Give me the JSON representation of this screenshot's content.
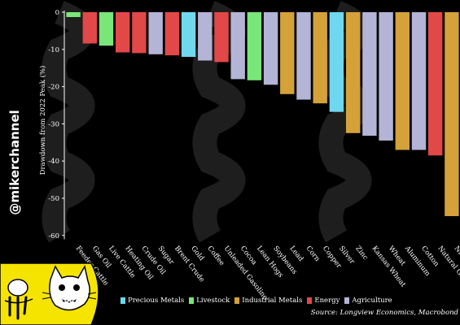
{
  "watermark": "@mikerchannel",
  "legend": [
    {
      "label": "Precious Metals",
      "color": "#6fd8ee"
    },
    {
      "label": "Livestock",
      "color": "#79e679"
    },
    {
      "label": "Industrial Metals",
      "color": "#d4a238"
    },
    {
      "label": "Energy",
      "color": "#e24848"
    },
    {
      "label": "Agriculture",
      "color": "#b4b4d6"
    }
  ],
  "source": "Source: Longview Economics, Macrobond",
  "chart_data": {
    "type": "bar",
    "ylabel": "Drawdown from 2022 Peak (%)",
    "ylim": [
      -61,
      0
    ],
    "yticks": [
      0,
      -10,
      -20,
      -30,
      -40,
      -50,
      -60
    ],
    "grid": false,
    "legend_position": "bottom",
    "categories": [
      "Feeder Cattle",
      "Gas Oil",
      "Live Cattle",
      "Heating Oil",
      "Crude Oil",
      "Sugar",
      "Brent Crude",
      "Gold",
      "Coffee",
      "Unleaded Gasoline",
      "Cocoa",
      "Lean Hogs",
      "Soybeans",
      "Lead",
      "Corn",
      "Copper",
      "Silver",
      "Zinc",
      "Kansas Wheat",
      "Wheat",
      "Aluminum",
      "Cotton",
      "Natural Gas",
      "Nickel"
    ],
    "groups": [
      "Livestock",
      "Energy",
      "Livestock",
      "Energy",
      "Energy",
      "Agriculture",
      "Energy",
      "Precious Metals",
      "Agriculture",
      "Energy",
      "Agriculture",
      "Livestock",
      "Agriculture",
      "Industrial Metals",
      "Agriculture",
      "Industrial Metals",
      "Precious Metals",
      "Industrial Metals",
      "Agriculture",
      "Agriculture",
      "Industrial Metals",
      "Agriculture",
      "Energy",
      "Industrial Metals"
    ],
    "values": [
      -1.3,
      -8.4,
      -9.0,
      -10.8,
      -11.0,
      -11.3,
      -11.6,
      -12.0,
      -13.0,
      -13.4,
      -18.0,
      -18.3,
      -19.5,
      -22.0,
      -23.5,
      -24.5,
      -26.8,
      -32.5,
      -33.2,
      -34.5,
      -37.0,
      -37.0,
      -38.5,
      -54.8
    ]
  }
}
